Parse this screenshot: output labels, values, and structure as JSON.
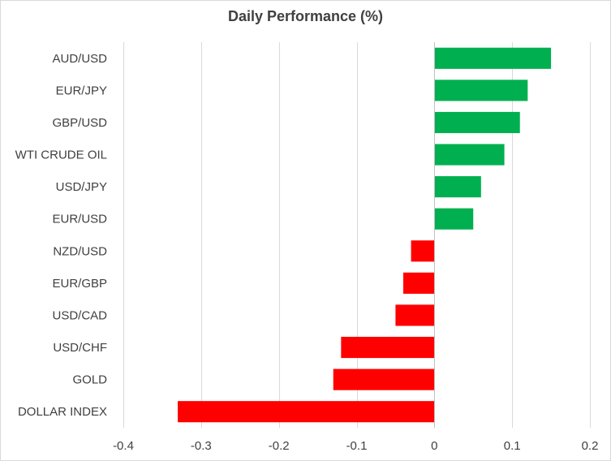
{
  "chart_data": {
    "type": "bar",
    "orientation": "horizontal",
    "title": "Daily Performance (%)",
    "xlabel": "",
    "ylabel": "",
    "xlim": [
      -0.4,
      0.2
    ],
    "x_ticks": [
      -0.4,
      -0.3,
      -0.2,
      -0.1,
      0,
      0.1,
      0.2
    ],
    "tick_labels": [
      "-0.4",
      "-0.3",
      "-0.2",
      "-0.1",
      "0",
      "0.1",
      "0.2"
    ],
    "grid": true,
    "categories": [
      "AUD/USD",
      "EUR/JPY",
      "GBP/USD",
      "WTI CRUDE OIL",
      "USD/JPY",
      "EUR/USD",
      "NZD/USD",
      "EUR/GBP",
      "USD/CAD",
      "USD/CHF",
      "GOLD",
      "DOLLAR INDEX"
    ],
    "values": [
      0.15,
      0.12,
      0.11,
      0.09,
      0.06,
      0.05,
      -0.03,
      -0.04,
      -0.05,
      -0.12,
      -0.13,
      -0.33
    ],
    "colors": {
      "positive": "#00b050",
      "negative": "#ff0000",
      "grid": "#d9d9d9",
      "axis": "#bfbfbf",
      "text": "#404040"
    }
  }
}
